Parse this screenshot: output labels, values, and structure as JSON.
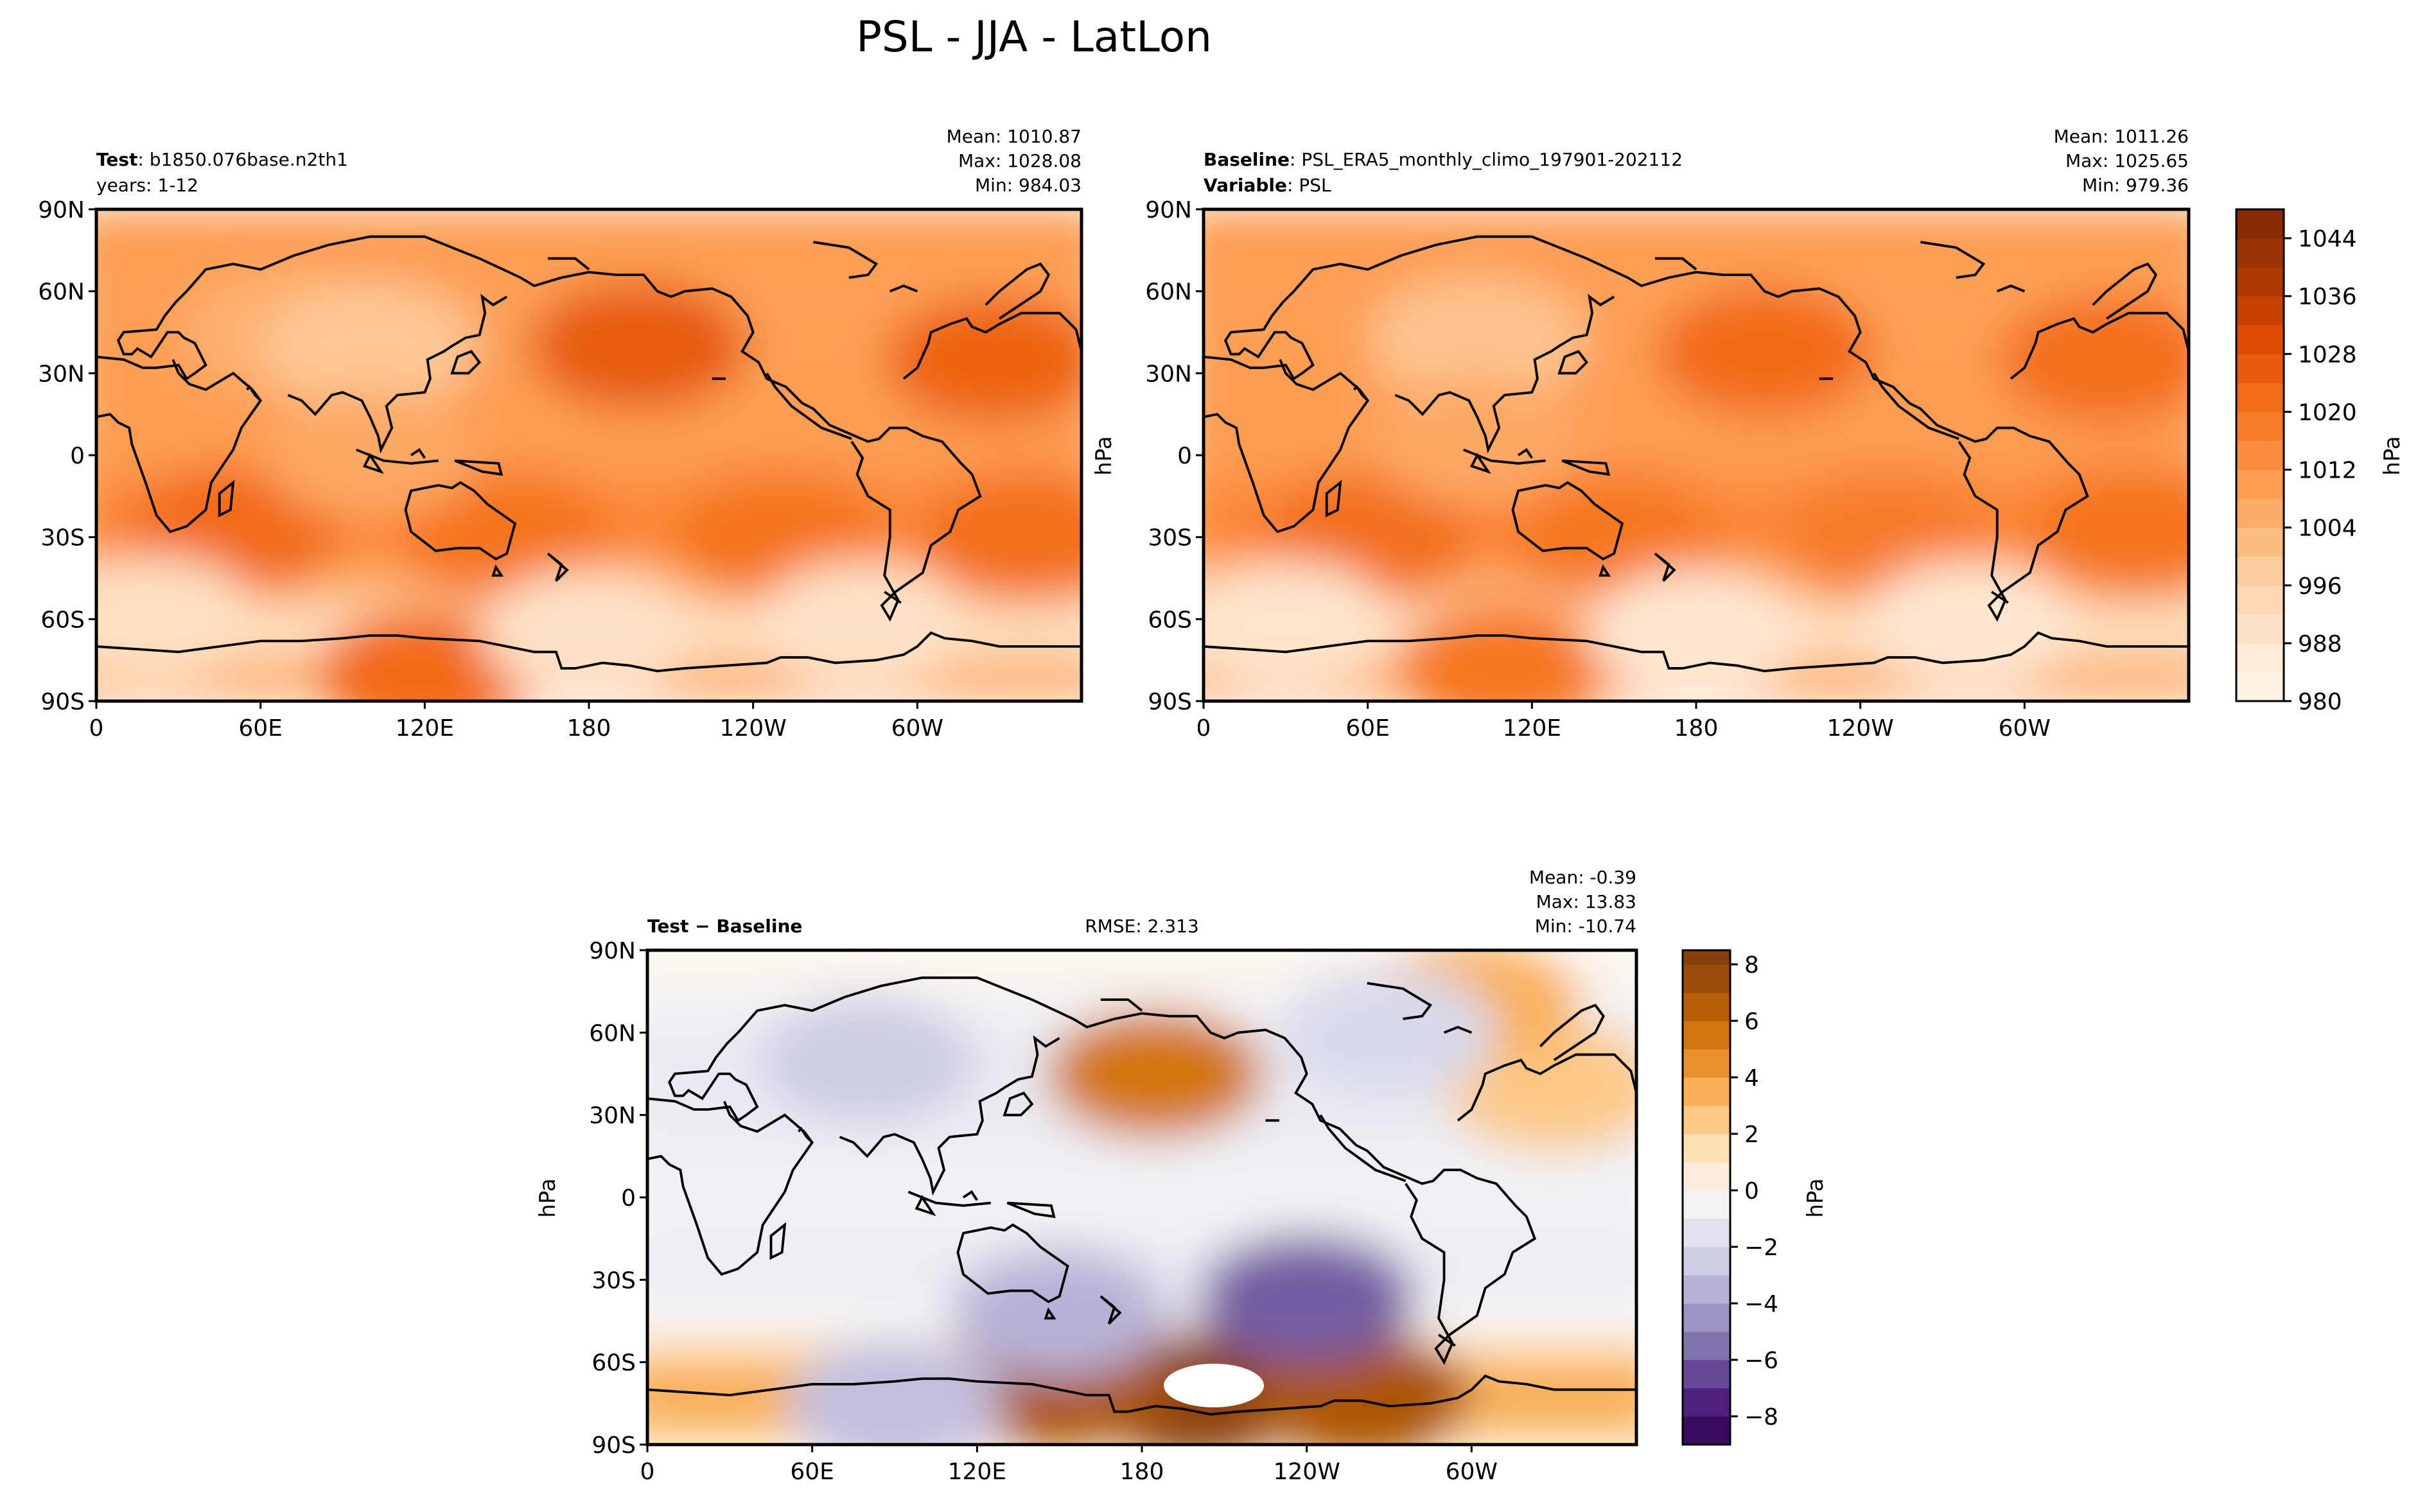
{
  "figure": {
    "title": "PSL - JJA - LatLon"
  },
  "axes_ticks": {
    "lon": [
      "0",
      "60E",
      "120E",
      "180",
      "120W",
      "60W"
    ],
    "lat": [
      "90N",
      "60N",
      "30N",
      "0",
      "30S",
      "60S",
      "90S"
    ]
  },
  "chart_data": [
    {
      "type": "heatmap",
      "panel": "test",
      "header": {
        "bold": "Test",
        "name": "b1850.076base.n2th1",
        "line2_plain": "years: 1-12",
        "line2_bold": ""
      },
      "stats": {
        "mean": "Mean: 1010.87",
        "max": "Max: 1028.08",
        "min": "Min: 984.03"
      },
      "ylabel": "",
      "xlim": [
        0,
        360
      ],
      "ylim": [
        -90,
        90
      ],
      "colorscale": "oranges",
      "highs": [
        [
          198,
          40,
          1026
        ],
        [
          328,
          35,
          1024
        ],
        [
          70,
          45,
          1005
        ],
        [
          50,
          -28,
          1022
        ],
        [
          150,
          -30,
          1020
        ],
        [
          250,
          -30,
          1020
        ],
        [
          340,
          -30,
          1021
        ],
        [
          120,
          -80,
          1022
        ]
      ],
      "lows": [
        [
          100,
          40,
          999
        ],
        [
          100,
          0,
          1007
        ],
        [
          180,
          -65,
          990
        ],
        [
          20,
          -60,
          991
        ],
        [
          280,
          -62,
          990
        ]
      ]
    },
    {
      "type": "heatmap",
      "panel": "baseline",
      "header": {
        "bold": "Baseline",
        "name": "PSL_ERA5_monthly_climo_197901-202112",
        "line2_plain": "PSL",
        "line2_bold": "Variable"
      },
      "stats": {
        "mean": "Mean: 1011.26",
        "max": "Max: 1025.65",
        "min": "Min: 979.36"
      },
      "ylabel": "hPa",
      "xlim": [
        0,
        360
      ],
      "ylim": [
        -90,
        90
      ],
      "colorscale": "oranges",
      "highs": [
        [
          205,
          38,
          1022
        ],
        [
          330,
          35,
          1021
        ],
        [
          60,
          -30,
          1021
        ],
        [
          150,
          -30,
          1019
        ],
        [
          250,
          -30,
          1018
        ],
        [
          340,
          -28,
          1020
        ],
        [
          110,
          -78,
          1019
        ]
      ],
      "lows": [
        [
          100,
          42,
          1000
        ],
        [
          100,
          5,
          1007
        ],
        [
          180,
          -65,
          988
        ],
        [
          30,
          -62,
          989
        ],
        [
          280,
          -62,
          988
        ]
      ]
    },
    {
      "type": "heatmap",
      "panel": "diff",
      "header": {
        "bold": "Test − Baseline",
        "name": "",
        "line2_plain": "",
        "line2_bold": ""
      },
      "rmse": "RMSE: 2.313",
      "stats": {
        "mean": "Mean: -0.39",
        "max": "Max: 13.83",
        "min": "Min: -10.74"
      },
      "ylabel": "hPa",
      "xlim": [
        0,
        360
      ],
      "ylim": [
        -90,
        90
      ],
      "colorscale": "puor",
      "highs": [
        [
          185,
          45,
          5.5
        ],
        [
          200,
          -72,
          8
        ],
        [
          150,
          -68,
          7
        ],
        [
          260,
          -72,
          7
        ],
        [
          330,
          40,
          2.5
        ],
        [
          300,
          70,
          3.5
        ]
      ],
      "lows": [
        [
          240,
          -37,
          -6
        ],
        [
          150,
          -42,
          -3.5
        ],
        [
          80,
          50,
          -2.5
        ],
        [
          270,
          60,
          -2
        ],
        [
          90,
          -75,
          -3
        ]
      ]
    }
  ],
  "colorbars": [
    {
      "panel": "abs",
      "label": "hPa",
      "ticks": [
        "980",
        "988",
        "996",
        "1004",
        "1012",
        "1020",
        "1028",
        "1036",
        "1044"
      ],
      "levels": [
        980,
        984,
        988,
        992,
        996,
        1000,
        1004,
        1008,
        1012,
        1016,
        1020,
        1024,
        1028,
        1032,
        1036,
        1040,
        1044,
        1048
      ]
    },
    {
      "panel": "diff",
      "label": "hPa",
      "ticks": [
        "−8",
        "−6",
        "−4",
        "−2",
        "0",
        "2",
        "4",
        "6",
        "8"
      ],
      "levels": [
        -9,
        -8,
        -7,
        -6,
        -5,
        -4,
        -3,
        -2,
        -1,
        0,
        1,
        2,
        3,
        4,
        5,
        6,
        7,
        8,
        8.5
      ]
    }
  ],
  "colors": {
    "oranges": [
      "#fff5eb",
      "#fee6ce",
      "#fdd0a2",
      "#fdae6b",
      "#fd8d3c",
      "#f16913",
      "#d94801",
      "#a63603",
      "#7f2704"
    ],
    "puor": [
      "#2d004b",
      "#542788",
      "#8073ac",
      "#b2abd2",
      "#d8daeb",
      "#f7f7f7",
      "#fee0b6",
      "#fdb863",
      "#e08214",
      "#b35806",
      "#7f3b08"
    ],
    "land_outline": "#000000"
  }
}
